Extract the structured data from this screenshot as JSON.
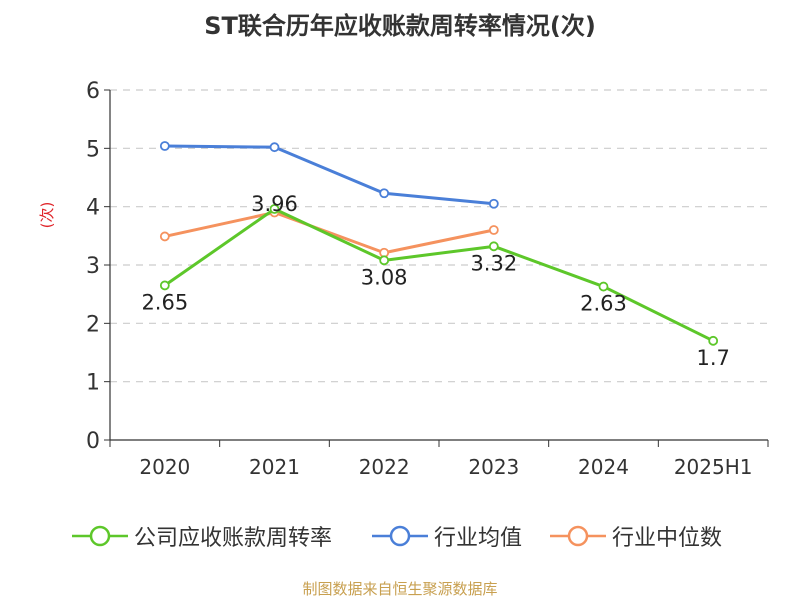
{
  "chart_data": {
    "type": "line",
    "title": "ST联合历年应收账款周转率情况(次)",
    "ylabel": "(次)",
    "ylim": [
      0,
      6
    ],
    "yticks": [
      0,
      1,
      2,
      3,
      4,
      5,
      6
    ],
    "grid": true,
    "legend_position": "bottom",
    "categories": [
      "2020",
      "2021",
      "2022",
      "2023",
      "2024",
      "2025H1"
    ],
    "series": [
      {
        "name": "公司应收账款周转率",
        "color": "#5dc72a",
        "values": [
          2.65,
          3.96,
          3.08,
          3.32,
          2.63,
          1.7
        ],
        "labels": [
          "2.65",
          "3.96",
          "3.08",
          "3.32",
          "2.63",
          "1.7"
        ]
      },
      {
        "name": "行业均值",
        "color": "#4a7fd8",
        "values": [
          5.04,
          5.02,
          4.23,
          4.05,
          null,
          null
        ]
      },
      {
        "name": "行业中位数",
        "color": "#f5925e",
        "values": [
          3.49,
          3.9,
          3.21,
          3.6,
          null,
          null
        ]
      }
    ]
  },
  "colors": {
    "title": "#333333",
    "axis": "#333333",
    "ylabel": "#e0262b",
    "grid": "#cccccc",
    "source": "#c8a050"
  },
  "source": "制图数据来自恒生聚源数据库"
}
